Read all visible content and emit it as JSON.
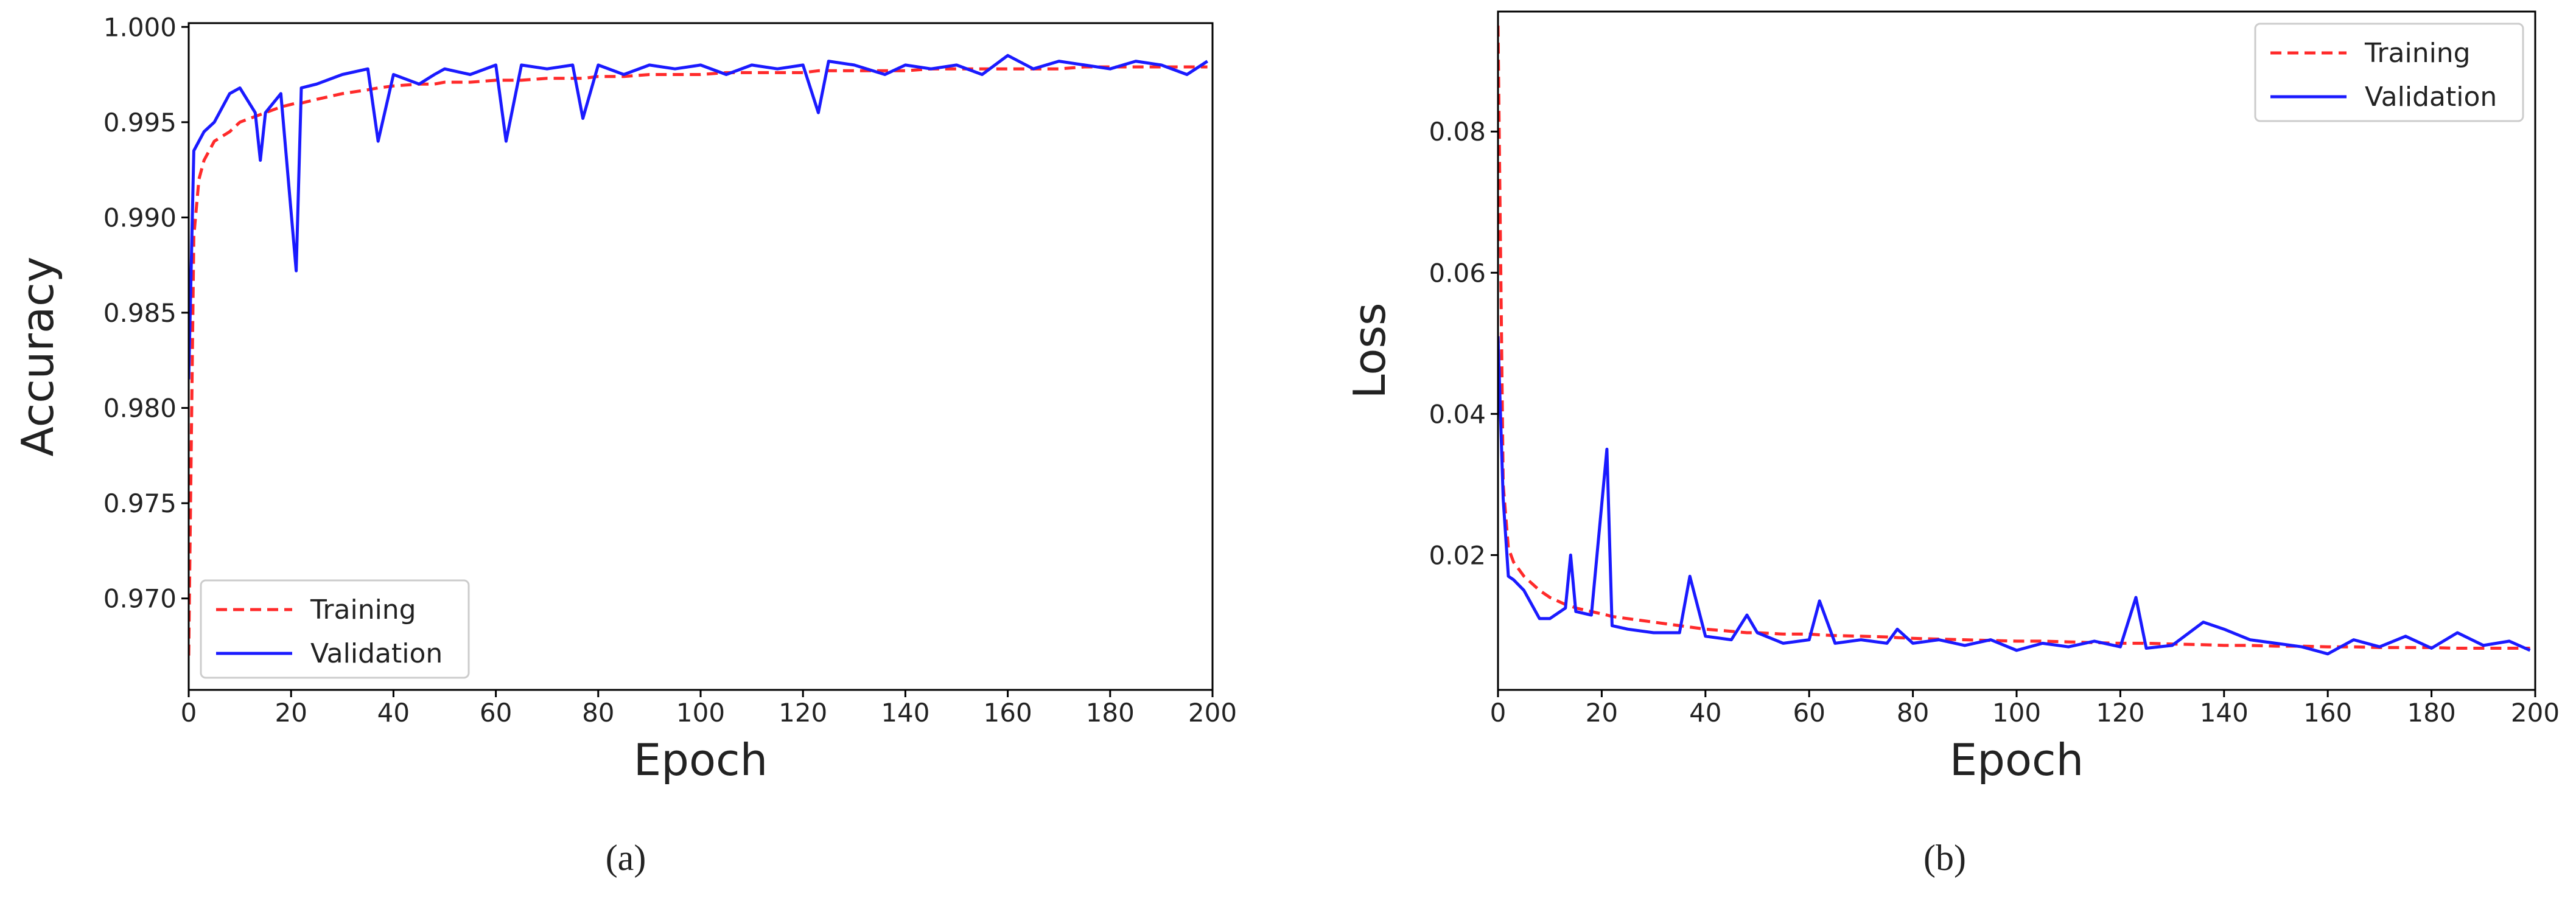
{
  "chart_data": [
    {
      "type": "line",
      "caption": "(a)",
      "xlabel": "Epoch",
      "ylabel": "Accuracy",
      "x": [
        0,
        1,
        2,
        3,
        5,
        8,
        10,
        13,
        14,
        15,
        18,
        21,
        22,
        25,
        30,
        35,
        37,
        40,
        45,
        48,
        50,
        55,
        60,
        62,
        65,
        70,
        75,
        77,
        80,
        85,
        90,
        95,
        100,
        105,
        110,
        115,
        120,
        123,
        125,
        130,
        136,
        140,
        145,
        150,
        155,
        160,
        165,
        170,
        175,
        180,
        185,
        190,
        195,
        199
      ],
      "series": [
        {
          "name": "Training",
          "color": "#ff2a2a",
          "dash": true,
          "values": [
            0.967,
            0.989,
            0.992,
            0.993,
            0.994,
            0.9945,
            0.995,
            0.9953,
            0.9954,
            0.9955,
            0.9958,
            0.996,
            0.996,
            0.9962,
            0.9965,
            0.9967,
            0.9968,
            0.9969,
            0.997,
            0.997,
            0.9971,
            0.9971,
            0.9972,
            0.9972,
            0.9972,
            0.9973,
            0.9973,
            0.9973,
            0.9974,
            0.9974,
            0.9975,
            0.9975,
            0.9975,
            0.9976,
            0.9976,
            0.9976,
            0.9976,
            0.9977,
            0.9977,
            0.9977,
            0.9977,
            0.9977,
            0.9978,
            0.9978,
            0.9978,
            0.9978,
            0.9978,
            0.9978,
            0.9979,
            0.9979,
            0.9979,
            0.9979,
            0.9979,
            0.9979
          ]
        },
        {
          "name": "Validation",
          "color": "#1a1aff",
          "dash": false,
          "values": [
            0.9815,
            0.9935,
            0.994,
            0.9945,
            0.995,
            0.9965,
            0.9968,
            0.9955,
            0.993,
            0.9955,
            0.9965,
            0.9872,
            0.9968,
            0.997,
            0.9975,
            0.9978,
            0.994,
            0.9975,
            0.997,
            0.9975,
            0.9978,
            0.9975,
            0.998,
            0.994,
            0.998,
            0.9978,
            0.998,
            0.9952,
            0.998,
            0.9975,
            0.998,
            0.9978,
            0.998,
            0.9975,
            0.998,
            0.9978,
            0.998,
            0.9955,
            0.9982,
            0.998,
            0.9975,
            0.998,
            0.9978,
            0.998,
            0.9975,
            0.9985,
            0.9978,
            0.9982,
            0.998,
            0.9978,
            0.9982,
            0.998,
            0.9975,
            0.9982
          ]
        }
      ],
      "xlim": [
        0,
        200
      ],
      "xticks": [
        0,
        20,
        40,
        60,
        80,
        100,
        120,
        140,
        160,
        180,
        200
      ],
      "ylim": [
        0.9652,
        1.0002
      ],
      "yticks": [
        {
          "value": 0.97,
          "label": "0.970"
        },
        {
          "value": 0.975,
          "label": "0.975"
        },
        {
          "value": 0.98,
          "label": "0.980"
        },
        {
          "value": 0.985,
          "label": "0.985"
        },
        {
          "value": 0.99,
          "label": "0.990"
        },
        {
          "value": 0.995,
          "label": "0.995"
        },
        {
          "value": 1.0,
          "label": "1.000"
        }
      ],
      "legend": "lower left"
    },
    {
      "type": "line",
      "caption": "(b)",
      "xlabel": "Epoch",
      "ylabel": "Loss",
      "x": [
        0,
        1,
        2,
        3,
        5,
        8,
        10,
        13,
        14,
        15,
        18,
        21,
        22,
        25,
        30,
        35,
        37,
        40,
        45,
        48,
        50,
        55,
        60,
        62,
        65,
        70,
        75,
        77,
        80,
        85,
        90,
        95,
        100,
        105,
        110,
        115,
        120,
        123,
        125,
        130,
        136,
        140,
        145,
        150,
        155,
        160,
        165,
        170,
        175,
        180,
        185,
        190,
        195,
        199
      ],
      "series": [
        {
          "name": "Training",
          "color": "#ff2a2a",
          "dash": true,
          "values": [
            0.095,
            0.03,
            0.021,
            0.019,
            0.017,
            0.015,
            0.014,
            0.013,
            0.0128,
            0.0125,
            0.012,
            0.0115,
            0.0113,
            0.011,
            0.0105,
            0.01,
            0.0098,
            0.0095,
            0.0092,
            0.009,
            0.009,
            0.0088,
            0.0088,
            0.0087,
            0.0086,
            0.0085,
            0.0084,
            0.0083,
            0.0082,
            0.0081,
            0.008,
            0.0079,
            0.0078,
            0.0078,
            0.0077,
            0.0076,
            0.0075,
            0.0075,
            0.0075,
            0.0074,
            0.0073,
            0.0072,
            0.0072,
            0.0071,
            0.0071,
            0.007,
            0.007,
            0.0069,
            0.0069,
            0.0069,
            0.0068,
            0.0068,
            0.0068,
            0.0068
          ]
        },
        {
          "name": "Validation",
          "color": "#1a1aff",
          "dash": false,
          "values": [
            0.051,
            0.028,
            0.017,
            0.0165,
            0.015,
            0.011,
            0.011,
            0.0125,
            0.02,
            0.012,
            0.0115,
            0.035,
            0.01,
            0.0095,
            0.009,
            0.009,
            0.017,
            0.0085,
            0.008,
            0.0115,
            0.009,
            0.0075,
            0.008,
            0.0135,
            0.0075,
            0.008,
            0.0075,
            0.0095,
            0.0075,
            0.008,
            0.0072,
            0.008,
            0.0065,
            0.0075,
            0.007,
            0.0078,
            0.007,
            0.014,
            0.0068,
            0.0072,
            0.0105,
            0.0095,
            0.008,
            0.0075,
            0.007,
            0.006,
            0.008,
            0.007,
            0.0085,
            0.0068,
            0.009,
            0.0072,
            0.0078,
            0.0065
          ]
        }
      ],
      "xlim": [
        0,
        200
      ],
      "xticks": [
        0,
        20,
        40,
        60,
        80,
        100,
        120,
        140,
        160,
        180,
        200
      ],
      "ylim": [
        0.0009,
        0.097
      ],
      "yticks": [
        0.02,
        0.04,
        0.06,
        0.08
      ],
      "legend": "upper right"
    }
  ]
}
